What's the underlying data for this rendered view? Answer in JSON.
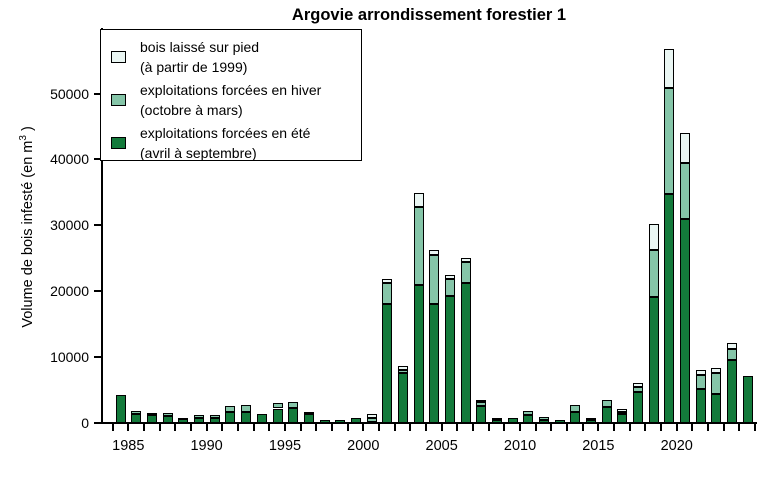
{
  "chart_data": {
    "type": "bar",
    "stacked": true,
    "title": "Argovie arrondissement forestier 1",
    "ylabel": "Volume de bois infesté (en m³ )",
    "ylabel_prefix": "Volume de bois infesté (en m",
    "ylabel_sup": "3",
    "ylabel_suffix": " )",
    "xlabel": "",
    "categories": [
      1984,
      1985,
      1986,
      1987,
      1988,
      1989,
      1990,
      1991,
      1992,
      1993,
      1994,
      1995,
      1996,
      1997,
      1998,
      1999,
      2000,
      2001,
      2002,
      2003,
      2004,
      2005,
      2006,
      2007,
      2008,
      2009,
      2010,
      2011,
      2012,
      2013,
      2014,
      2015,
      2016,
      2017,
      2018,
      2019,
      2020,
      2021,
      2022,
      2023,
      2024
    ],
    "series": [
      {
        "name": "exploitations forcées en été",
        "sub": "(avril à septembre)",
        "color": "#137a3b",
        "stack_position": "bottom",
        "values": [
          4200,
          1300,
          1200,
          1100,
          600,
          800,
          800,
          1600,
          1700,
          1400,
          2200,
          2300,
          1350,
          400,
          500,
          700,
          200,
          18100,
          7600,
          20900,
          18100,
          19200,
          21200,
          2600,
          500,
          760,
          1200,
          500,
          400,
          1700,
          460,
          2500,
          1300,
          4650,
          19100,
          34700,
          30900,
          5200,
          4450,
          9500,
          7200
        ]
      },
      {
        "name": "exploitations forcées en hiver",
        "sub": "(octobre à mars)",
        "color": "#85c5a8",
        "stack_position": "middle",
        "values": [
          0,
          450,
          350,
          350,
          200,
          350,
          450,
          1000,
          1000,
          0,
          900,
          900,
          350,
          0,
          0,
          0,
          600,
          3200,
          500,
          11900,
          7400,
          2700,
          3300,
          550,
          200,
          0,
          550,
          450,
          0,
          1000,
          300,
          1000,
          400,
          850,
          7100,
          16200,
          8500,
          2100,
          3100,
          1800,
          0
        ]
      },
      {
        "name": "bois laissé sur pied",
        "sub": "(à partir de 1999)",
        "color": "#eaf6f3",
        "stack_position": "top",
        "values": [
          0,
          0,
          0,
          0,
          0,
          0,
          0,
          0,
          0,
          0,
          0,
          0,
          0,
          0,
          0,
          0,
          500,
          600,
          500,
          2100,
          800,
          600,
          600,
          300,
          0,
          0,
          0,
          0,
          0,
          0,
          0,
          0,
          500,
          600,
          4050,
          5900,
          4600,
          800,
          800,
          900,
          0
        ]
      }
    ],
    "legend": [
      {
        "line1": "bois laissé sur pied",
        "line2": "(à partir de 1999)",
        "color": "#eaf6f3"
      },
      {
        "line1": "exploitations forcées en hiver",
        "line2": "(octobre à mars)",
        "color": "#85c5a8"
      },
      {
        "line1": "exploitations forcées en été",
        "line2": "(avril à septembre)",
        "color": "#137a3b"
      }
    ],
    "legend_position": "top-left",
    "grid": false,
    "y_ticks": [
      0,
      10000,
      20000,
      30000,
      40000,
      50000
    ],
    "ylim": [
      0,
      57600
    ],
    "x_tick_range": [
      1984,
      2025
    ],
    "x_tick_labels": [
      1985,
      1990,
      1995,
      2000,
      2005,
      2010,
      2015,
      2020
    ]
  }
}
